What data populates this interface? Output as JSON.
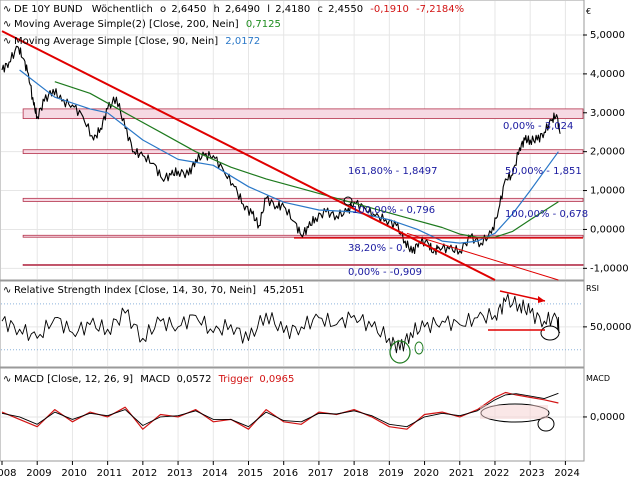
{
  "header": {
    "instrument": "DE 10Y BUND",
    "interval": "Wöchentlich",
    "o_label": "o",
    "o_value": "2,6450",
    "h_label": "h",
    "h_value": "2,6490",
    "l_label": "l",
    "l_value": "2,4180",
    "c_label": "c",
    "c_value": "2,4550",
    "change": "-0,1910",
    "change_pct": "-7,2184%"
  },
  "legend": {
    "ma200_label": "Moving Average Simple(2) [Close, 200, Nein]",
    "ma200_value": "0,7125",
    "ma90_label": "Moving Average Simple [Close, 90, Nein]",
    "ma90_value": "2,0172",
    "rsi_label": "Relative Strength Index [Close, 14, 30, 70, Nein]",
    "rsi_value": "45,2051",
    "macd_label": "MACD [Close, 12, 26, 9]",
    "macd_word": "MACD",
    "macd_value": "0,0572",
    "trigger_word": "Trigger",
    "trigger_value": "0,0965"
  },
  "panes": {
    "price_unit": "€",
    "rsi_unit": "RSI",
    "macd_unit": "MACD"
  },
  "fib_labels": {
    "f1": "0,00% - 3,024",
    "f2": "161,80% - 1,8497",
    "f3": "50,00% - 1,851",
    "f4": "100,00% - 0,796",
    "f5": "100,00% - 0,678",
    "f6": "38,20% - 0,",
    "f7": "0,00% - -0,909"
  },
  "colors": {
    "price": "#000000",
    "ma90": "#2a78c8",
    "ma200": "#1e7a1e",
    "trendline": "#e00000",
    "fib_band_fill": "#f6d9e3",
    "fib_band_line": "#b4324b",
    "fib_text": "#1a1aa0",
    "macd_line": "#d21414",
    "grid": "#e6e6e6"
  },
  "chart_data": [
    {
      "type": "line",
      "pane": "price",
      "xlim": [
        2008,
        2024.5
      ],
      "ylim": [
        -1.3,
        5.9
      ],
      "grid": true,
      "yticks": [
        {
          "v": 5,
          "label": "5,0000"
        },
        {
          "v": 4,
          "label": "4,0000"
        },
        {
          "v": 3,
          "label": "3,0000"
        },
        {
          "v": 2,
          "label": "2,0000"
        },
        {
          "v": 1,
          "label": "1,0000"
        },
        {
          "v": 0,
          "label": "0,0000"
        },
        {
          "v": -1,
          "label": "-1,0000"
        }
      ],
      "series": [
        {
          "name": "DE 10Y BUND",
          "key": "price",
          "x": [
            2008.0,
            2008.2,
            2008.45,
            2008.6,
            2008.75,
            2008.9,
            2009.0,
            2009.2,
            2009.45,
            2009.7,
            2010.0,
            2010.3,
            2010.6,
            2010.8,
            2011.0,
            2011.25,
            2011.5,
            2011.75,
            2012.0,
            2012.3,
            2012.55,
            2012.8,
            2013.0,
            2013.3,
            2013.5,
            2013.75,
            2014.0,
            2014.3,
            2014.6,
            2014.85,
            2015.1,
            2015.3,
            2015.5,
            2015.8,
            2016.0,
            2016.3,
            2016.5,
            2016.7,
            2016.9,
            2017.2,
            2017.5,
            2017.8,
            2018.0,
            2018.3,
            2018.6,
            2018.9,
            2019.2,
            2019.45,
            2019.65,
            2019.85,
            2020.1,
            2020.25,
            2020.4,
            2020.7,
            2021.0,
            2021.3,
            2021.6,
            2021.9,
            2022.1,
            2022.3,
            2022.5,
            2022.7,
            2022.85,
            2023.0,
            2023.2,
            2023.4,
            2023.6,
            2023.75,
            2023.85
          ],
          "values": [
            4.1,
            4.3,
            4.7,
            4.4,
            4.0,
            3.2,
            2.9,
            3.3,
            3.6,
            3.3,
            3.2,
            2.9,
            2.3,
            2.6,
            3.1,
            3.4,
            2.6,
            2.0,
            1.9,
            1.7,
            1.3,
            1.4,
            1.5,
            1.4,
            1.8,
            1.9,
            1.9,
            1.5,
            1.1,
            0.65,
            0.4,
            0.1,
            0.8,
            0.6,
            0.6,
            0.2,
            -0.15,
            0.05,
            0.3,
            0.45,
            0.35,
            0.45,
            0.7,
            0.55,
            0.35,
            0.25,
            0.1,
            -0.3,
            -0.6,
            -0.3,
            -0.35,
            -0.6,
            -0.45,
            -0.5,
            -0.55,
            -0.2,
            -0.35,
            -0.1,
            0.5,
            1.3,
            1.4,
            2.1,
            2.3,
            2.3,
            2.3,
            2.5,
            2.8,
            2.95,
            2.46
          ]
        },
        {
          "name": "Moving Average Simple [Close, 90, Nein]",
          "key": "ma90",
          "x": [
            2008.5,
            2009.5,
            2010.5,
            2011.0,
            2012.0,
            2013.0,
            2014.0,
            2015.0,
            2016.0,
            2017.0,
            2018.0,
            2019.0,
            2019.8,
            2020.5,
            2021.0,
            2021.5,
            2022.0,
            2022.5,
            2023.0,
            2023.8
          ],
          "values": [
            4.1,
            3.4,
            3.1,
            3.0,
            2.3,
            1.8,
            1.65,
            1.1,
            0.7,
            0.5,
            0.45,
            0.25,
            0.0,
            -0.3,
            -0.35,
            -0.3,
            -0.1,
            0.4,
            1.0,
            2.0
          ]
        },
        {
          "name": "Moving Average Simple(2) [Close, 200, Nein]",
          "key": "ma200",
          "x": [
            2009.5,
            2010.5,
            2011.5,
            2012.5,
            2013.5,
            2014.5,
            2015.5,
            2016.5,
            2017.5,
            2018.5,
            2019.5,
            2020.5,
            2021.0,
            2021.5,
            2022.0,
            2022.5,
            2023.0,
            2023.8
          ],
          "values": [
            3.8,
            3.5,
            3.0,
            2.5,
            2.0,
            1.6,
            1.3,
            1.05,
            0.8,
            0.55,
            0.3,
            0.05,
            -0.12,
            -0.2,
            -0.2,
            -0.05,
            0.25,
            0.71
          ]
        },
        {
          "name": "trendline",
          "key": "trend",
          "x": [
            2008.0,
            2022.0
          ],
          "values": [
            5.1,
            -1.3
          ]
        },
        {
          "name": "trendline-low",
          "key": "trend2",
          "x": [
            2019.5,
            2023.8
          ],
          "values": [
            -0.1,
            -1.3
          ]
        }
      ],
      "levels": [
        {
          "y0": 3.1,
          "y1": 2.85
        },
        {
          "y0": 2.05,
          "y1": 1.95
        },
        {
          "y0": 0.8,
          "y1": 0.72
        },
        {
          "y0": -0.15,
          "y1": -0.2
        },
        {
          "y0": -0.9,
          "y1": -0.9
        }
      ]
    },
    {
      "type": "line",
      "pane": "rsi",
      "xlim": [
        2008,
        2024.5
      ],
      "ylim": [
        15,
        90
      ],
      "grid": true,
      "yticks": [
        {
          "v": 50,
          "label": "50,0000"
        }
      ],
      "hlines": [
        70,
        30
      ],
      "series": [
        {
          "name": "Relative Strength Index [Close, 14, 30, 70, Nein]",
          "key": "rsi",
          "x": [
            2008.0,
            2008.5,
            2009.0,
            2009.5,
            2010.0,
            2010.5,
            2011.0,
            2011.5,
            2012.0,
            2012.5,
            2013.0,
            2013.5,
            2014.0,
            2014.5,
            2015.0,
            2015.5,
            2016.0,
            2016.5,
            2017.0,
            2017.5,
            2018.0,
            2018.5,
            2019.0,
            2019.3,
            2019.6,
            2020.0,
            2020.5,
            2021.0,
            2021.5,
            2022.0,
            2022.3,
            2022.7,
            2023.0,
            2023.4,
            2023.75,
            2023.85
          ],
          "values": [
            55,
            48,
            40,
            58,
            45,
            52,
            48,
            62,
            40,
            55,
            50,
            60,
            45,
            52,
            38,
            62,
            45,
            50,
            58,
            52,
            60,
            50,
            40,
            30,
            45,
            50,
            55,
            52,
            58,
            60,
            72,
            70,
            62,
            55,
            58,
            45
          ]
        }
      ]
    },
    {
      "type": "line",
      "pane": "macd",
      "xlim": [
        2008,
        2024.5
      ],
      "ylim": [
        -0.18,
        0.2
      ],
      "grid": true,
      "yticks": [
        {
          "v": 0,
          "label": "0,0000"
        }
      ],
      "series": [
        {
          "name": "MACD",
          "key": "macd",
          "x": [
            2008.0,
            2008.5,
            2009.0,
            2009.5,
            2010.0,
            2010.5,
            2011.0,
            2011.5,
            2012.0,
            2012.5,
            2013.0,
            2013.5,
            2014.0,
            2014.5,
            2015.0,
            2015.5,
            2016.0,
            2016.5,
            2017.0,
            2017.5,
            2018.0,
            2018.5,
            2019.0,
            2019.5,
            2020.0,
            2020.5,
            2021.0,
            2021.5,
            2022.0,
            2022.3,
            2022.6,
            2023.0,
            2023.4,
            2023.8
          ],
          "values": [
            0.02,
            -0.01,
            -0.04,
            0.03,
            -0.02,
            0.02,
            0.0,
            0.04,
            -0.05,
            0.01,
            0.0,
            0.03,
            -0.02,
            -0.01,
            -0.05,
            0.03,
            -0.02,
            -0.03,
            0.02,
            0.01,
            0.03,
            0.0,
            -0.04,
            -0.05,
            0.01,
            0.02,
            0.0,
            0.03,
            0.08,
            0.1,
            0.09,
            0.08,
            0.07,
            0.057
          ]
        },
        {
          "name": "Trigger",
          "key": "trigger",
          "x": [
            2008.0,
            2008.5,
            2009.0,
            2009.5,
            2010.0,
            2010.5,
            2011.0,
            2011.5,
            2012.0,
            2012.5,
            2013.0,
            2013.5,
            2014.0,
            2014.5,
            2015.0,
            2015.5,
            2016.0,
            2016.5,
            2017.0,
            2017.5,
            2018.0,
            2018.5,
            2019.0,
            2019.5,
            2020.0,
            2020.5,
            2021.0,
            2021.5,
            2022.0,
            2022.3,
            2022.6,
            2023.0,
            2023.4,
            2023.8
          ],
          "values": [
            0.015,
            0.0,
            -0.03,
            0.02,
            -0.01,
            0.015,
            0.005,
            0.03,
            -0.035,
            0.0,
            0.005,
            0.025,
            -0.01,
            -0.01,
            -0.04,
            0.02,
            -0.015,
            -0.02,
            0.015,
            0.012,
            0.025,
            0.005,
            -0.03,
            -0.04,
            0.0,
            0.015,
            0.005,
            0.025,
            0.07,
            0.09,
            0.095,
            0.085,
            0.075,
            0.0965
          ]
        }
      ]
    }
  ],
  "x_axis_labels": [
    "2008",
    "2009",
    "2010",
    "2011",
    "2012",
    "2013",
    "2014",
    "2015",
    "2016",
    "2017",
    "2018",
    "2019",
    "2020",
    "2021",
    "2022",
    "2023",
    "2024"
  ]
}
